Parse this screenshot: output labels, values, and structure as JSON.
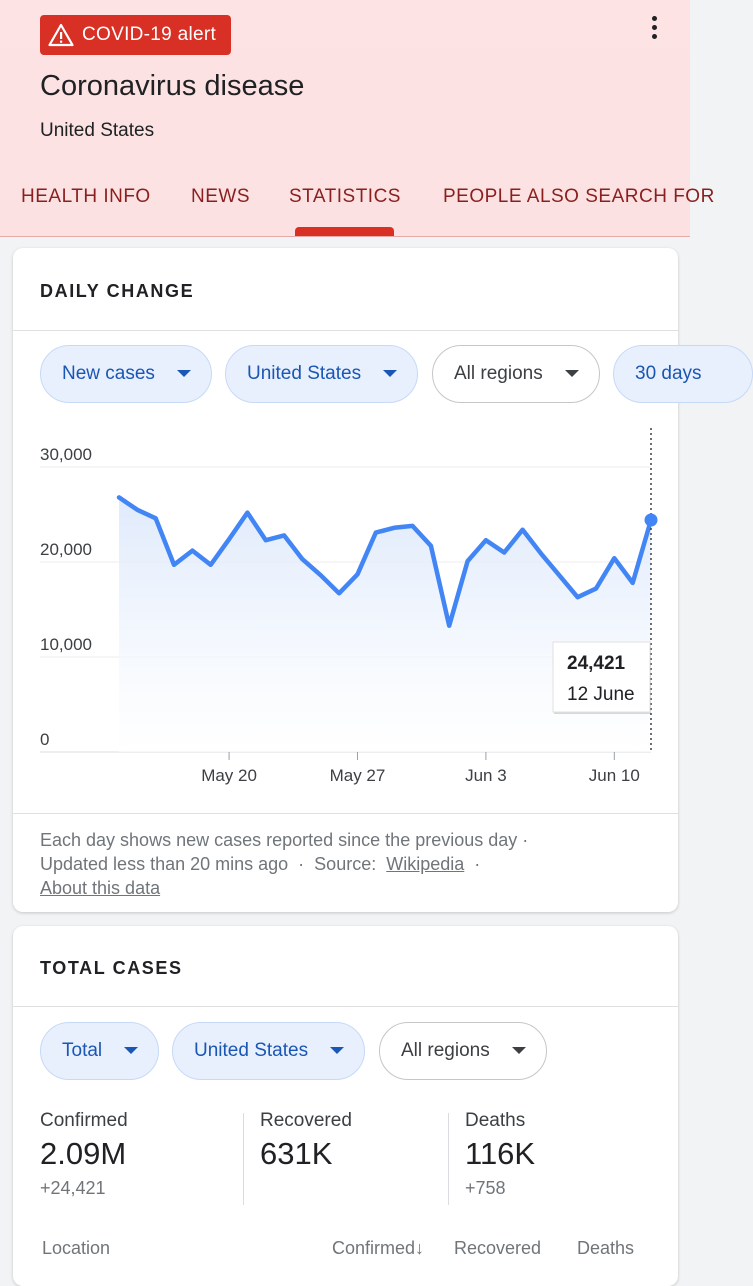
{
  "header": {
    "alert_label": "COVID-19 alert",
    "title": "Coronavirus disease",
    "subtitle": "United States",
    "tabs": [
      "HEALTH INFO",
      "NEWS",
      "STATISTICS",
      "PEOPLE ALSO SEARCH FOR"
    ],
    "active_tab": "STATISTICS"
  },
  "daily_change": {
    "title": "DAILY CHANGE",
    "filters": [
      {
        "label": "New cases",
        "style": "blue"
      },
      {
        "label": "United States",
        "style": "blue"
      },
      {
        "label": "All regions",
        "style": "white"
      },
      {
        "label": "30 days",
        "style": "blue"
      }
    ],
    "tooltip": {
      "value": "24,421",
      "date": "12 June"
    },
    "footer": {
      "line1": "Each day shows new cases reported since the previous day ·",
      "updated": "Updated less than 20 mins ago",
      "source_label": "Source:",
      "source_link": "Wikipedia",
      "about_link": "About this data"
    }
  },
  "chart_data": {
    "type": "area",
    "y_ticks": [
      "30,000",
      "20,000",
      "10,000",
      "0"
    ],
    "ylim": [
      0,
      30000
    ],
    "x_ticks": [
      {
        "label": "May 20",
        "day": 6
      },
      {
        "label": "May 27",
        "day": 13
      },
      {
        "label": "Jun 3",
        "day": 20
      },
      {
        "label": "Jun 10",
        "day": 27
      }
    ],
    "x": [
      "May 14",
      "May 15",
      "May 16",
      "May 17",
      "May 18",
      "May 19",
      "May 20",
      "May 21",
      "May 22",
      "May 23",
      "May 24",
      "May 25",
      "May 26",
      "May 27",
      "May 28",
      "May 29",
      "May 30",
      "May 31",
      "Jun 1",
      "Jun 2",
      "Jun 3",
      "Jun 4",
      "Jun 5",
      "Jun 6",
      "Jun 7",
      "Jun 8",
      "Jun 9",
      "Jun 10",
      "Jun 11",
      "Jun 12"
    ],
    "values": [
      26800,
      25500,
      24600,
      19700,
      21200,
      19700,
      22400,
      25200,
      22300,
      22800,
      20300,
      18600,
      16700,
      18700,
      23100,
      23600,
      23800,
      21700,
      13300,
      20100,
      22300,
      21000,
      23400,
      20900,
      18600,
      16300,
      17200,
      20400,
      17800,
      24421
    ],
    "color": "#4285f4"
  },
  "total_cases": {
    "title": "TOTAL CASES",
    "filters": [
      {
        "label": "Total",
        "style": "blue"
      },
      {
        "label": "United States",
        "style": "blue"
      },
      {
        "label": "All regions",
        "style": "white"
      }
    ],
    "stats": [
      {
        "label": "Confirmed",
        "value": "2.09M",
        "delta": "+24,421"
      },
      {
        "label": "Recovered",
        "value": "631K",
        "delta": ""
      },
      {
        "label": "Deaths",
        "value": "116K",
        "delta": "+758"
      }
    ],
    "table_headers": {
      "location": "Location",
      "confirmed": "Confirmed",
      "recovered": "Recovered",
      "deaths": "Deaths"
    }
  }
}
